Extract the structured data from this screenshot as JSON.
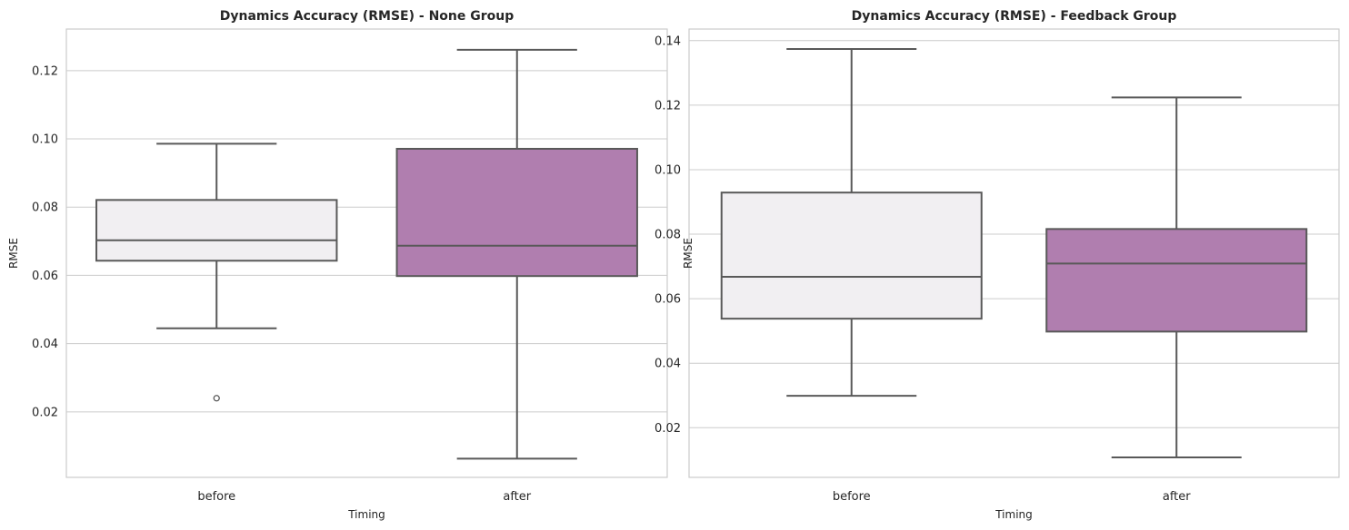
{
  "chart_data": [
    {
      "type": "box",
      "title": "Dynamics Accuracy (RMSE) - None Group",
      "xlabel": "Timing",
      "ylabel": "RMSE",
      "categories": [
        "before",
        "after"
      ],
      "ylim": [
        0.0008,
        0.1322
      ],
      "yticks": [
        0.02,
        0.04,
        0.06,
        0.08,
        0.1,
        0.12
      ],
      "ytick_labels": [
        "0.02",
        "0.04",
        "0.06",
        "0.08",
        "0.10",
        "0.12"
      ],
      "grid": "horizontal",
      "boxes": [
        {
          "category": "before",
          "whisker_low": 0.0445,
          "q1": 0.0643,
          "median": 0.0703,
          "q3": 0.0821,
          "whisker_high": 0.0986,
          "fliers": [
            0.024
          ],
          "color": "#f1eff2"
        },
        {
          "category": "after",
          "whisker_low": 0.0063,
          "q1": 0.0598,
          "median": 0.0687,
          "q3": 0.0971,
          "whisker_high": 0.1261,
          "fliers": [],
          "color": "#b07eaf"
        }
      ]
    },
    {
      "type": "box",
      "title": "Dynamics Accuracy (RMSE) - Feedback Group",
      "xlabel": "Timing",
      "ylabel": "RMSE",
      "categories": [
        "before",
        "after"
      ],
      "ylim": [
        0.0046,
        0.1436
      ],
      "yticks": [
        0.02,
        0.04,
        0.06,
        0.08,
        0.1,
        0.12,
        0.14
      ],
      "ytick_labels": [
        "0.02",
        "0.04",
        "0.06",
        "0.08",
        "0.10",
        "0.12",
        "0.14"
      ],
      "grid": "horizontal",
      "boxes": [
        {
          "category": "before",
          "whisker_low": 0.0299,
          "q1": 0.0538,
          "median": 0.0668,
          "q3": 0.0929,
          "whisker_high": 0.1374,
          "fliers": [],
          "color": "#f1eff2"
        },
        {
          "category": "after",
          "whisker_low": 0.0108,
          "q1": 0.0498,
          "median": 0.0709,
          "q3": 0.0816,
          "whisker_high": 0.1224,
          "fliers": [],
          "color": "#b07eaf"
        }
      ]
    }
  ],
  "style": {
    "grid_color": "#cccccc",
    "spine_color": "#cccccc",
    "line_color": "#595959",
    "text_color": "#262626"
  }
}
